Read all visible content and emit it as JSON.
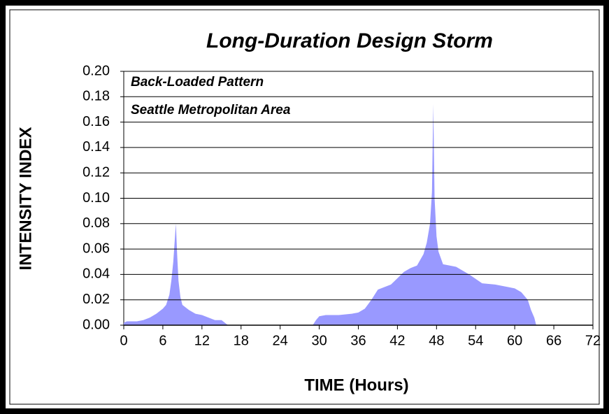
{
  "chart_data": {
    "type": "area",
    "title": "Long-Duration Design Storm",
    "annotations": [
      "Back-Loaded Pattern",
      "Seattle Metropolitan Area"
    ],
    "x_label": "TIME (Hours)",
    "y_label": "INTENSITY INDEX",
    "color": "#9999ff",
    "grid": true,
    "xlim": [
      0,
      72
    ],
    "xticks": [
      0,
      6,
      12,
      18,
      24,
      30,
      36,
      42,
      48,
      54,
      60,
      66,
      72
    ],
    "ylim": [
      0,
      0.2
    ],
    "yticks": [
      {
        "value": 0,
        "label": "0.00"
      },
      {
        "value": 0.02,
        "label": "0.02"
      },
      {
        "value": 0.04,
        "label": "0.04"
      },
      {
        "value": 0.06,
        "label": "0.06"
      },
      {
        "value": 0.08,
        "label": "0.08"
      },
      {
        "value": 0.1,
        "label": "0.10"
      },
      {
        "value": 0.12,
        "label": "0.12"
      },
      {
        "value": 0.14,
        "label": "0.14"
      },
      {
        "value": 0.16,
        "label": "0.16"
      },
      {
        "value": 0.18,
        "label": "0.18"
      },
      {
        "value": 0.2,
        "label": "0.20"
      }
    ],
    "x": [
      0,
      0.5,
      1,
      2,
      3,
      4,
      5,
      5.5,
      6,
      6.5,
      7,
      7.3,
      7.6,
      7.8,
      8,
      8.2,
      8.4,
      8.7,
      9,
      10,
      11,
      12,
      13,
      14,
      15,
      15.5,
      16,
      29,
      29.5,
      30,
      31,
      33,
      35,
      36,
      37,
      38,
      39,
      40,
      41,
      42,
      43,
      44,
      45,
      46,
      46.5,
      47,
      47.3,
      47.5,
      47.7,
      48,
      48.3,
      49,
      51,
      53,
      55,
      57,
      59,
      60,
      61,
      62,
      62.5,
      63,
      63.3,
      72
    ],
    "values": [
      0.002,
      0.003,
      0.003,
      0.003,
      0.004,
      0.006,
      0.009,
      0.011,
      0.013,
      0.016,
      0.024,
      0.035,
      0.05,
      0.065,
      0.08,
      0.055,
      0.035,
      0.022,
      0.016,
      0.012,
      0.009,
      0.008,
      0.006,
      0.004,
      0.004,
      0.002,
      0,
      0,
      0.004,
      0.007,
      0.008,
      0.008,
      0.009,
      0.01,
      0.013,
      0.02,
      0.028,
      0.03,
      0.032,
      0.037,
      0.042,
      0.045,
      0.047,
      0.056,
      0.065,
      0.08,
      0.105,
      0.174,
      0.1,
      0.07,
      0.058,
      0.048,
      0.046,
      0.04,
      0.033,
      0.032,
      0.03,
      0.029,
      0.026,
      0.02,
      0.012,
      0.006,
      0,
      0
    ]
  }
}
